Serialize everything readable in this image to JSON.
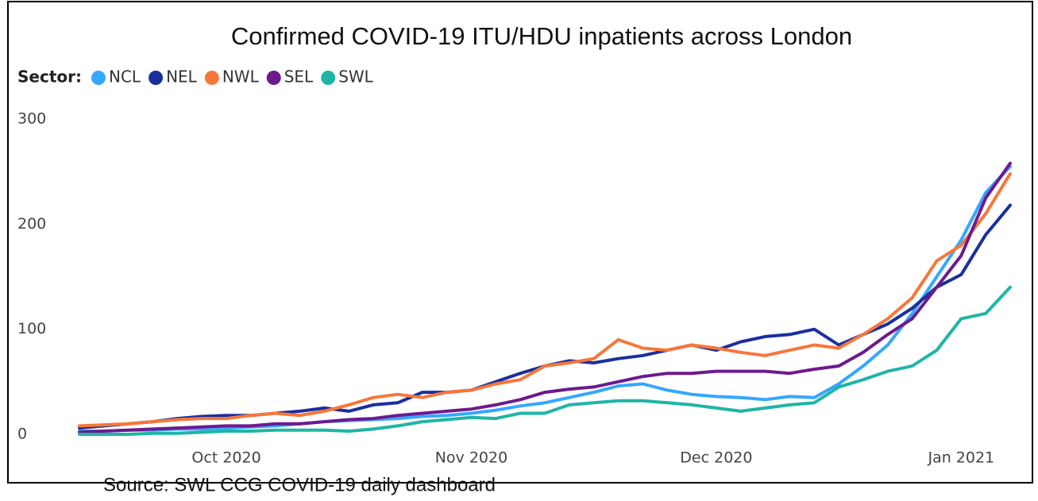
{
  "chart_data": {
    "type": "line",
    "title": "Confirmed COVID-19 ITU/HDU inpatients across London",
    "legend_title": "Sector:",
    "source": "Source: SWL CCG COVID-19 daily dashboard",
    "categories": [
      null,
      null,
      null,
      null,
      null,
      null,
      "Oct 2020",
      null,
      null,
      null,
      null,
      null,
      null,
      null,
      null,
      null,
      "Nov 2020",
      null,
      null,
      null,
      null,
      null,
      null,
      null,
      null,
      null,
      "Dec 2020",
      null,
      null,
      null,
      null,
      null,
      null,
      null,
      null,
      null,
      "Jan 2021",
      null,
      null
    ],
    "series": [
      {
        "name": "NCL",
        "color": "#35a7ff",
        "values": [
          3,
          3,
          4,
          4,
          5,
          5,
          6,
          7,
          8,
          10,
          12,
          13,
          14,
          15,
          17,
          18,
          20,
          23,
          27,
          30,
          35,
          40,
          46,
          48,
          42,
          38,
          36,
          35,
          33,
          36,
          35,
          48,
          65,
          85,
          115,
          150,
          185,
          230,
          255
        ]
      },
      {
        "name": "NEL",
        "color": "#1a2f9e",
        "values": [
          6,
          8,
          10,
          12,
          15,
          17,
          18,
          18,
          20,
          22,
          25,
          22,
          28,
          30,
          40,
          40,
          42,
          50,
          58,
          65,
          70,
          68,
          72,
          75,
          80,
          85,
          80,
          88,
          93,
          95,
          100,
          85,
          95,
          105,
          120,
          140,
          152,
          190,
          218
        ]
      },
      {
        "name": "NWL",
        "color": "#f7773a",
        "values": [
          8,
          9,
          10,
          12,
          14,
          15,
          15,
          18,
          20,
          18,
          22,
          28,
          35,
          38,
          35,
          40,
          42,
          48,
          52,
          65,
          68,
          72,
          90,
          82,
          80,
          85,
          82,
          78,
          75,
          80,
          85,
          82,
          95,
          110,
          130,
          165,
          180,
          210,
          248
        ]
      },
      {
        "name": "SEL",
        "color": "#6d1a8e",
        "values": [
          2,
          3,
          4,
          5,
          6,
          7,
          8,
          8,
          10,
          10,
          12,
          14,
          15,
          18,
          20,
          22,
          24,
          28,
          33,
          40,
          43,
          45,
          50,
          55,
          58,
          58,
          60,
          60,
          60,
          58,
          62,
          65,
          78,
          95,
          110,
          140,
          170,
          225,
          258
        ]
      },
      {
        "name": "SWL",
        "color": "#1fb5a6",
        "values": [
          0,
          0,
          0,
          1,
          1,
          2,
          3,
          3,
          4,
          4,
          4,
          3,
          5,
          8,
          12,
          14,
          16,
          15,
          20,
          20,
          28,
          30,
          32,
          32,
          30,
          28,
          25,
          22,
          25,
          28,
          30,
          45,
          52,
          60,
          65,
          80,
          110,
          115,
          140
        ]
      }
    ],
    "ylim": [
      0,
      300
    ],
    "yticks": [
      0,
      100,
      200,
      300
    ],
    "grid": false
  }
}
